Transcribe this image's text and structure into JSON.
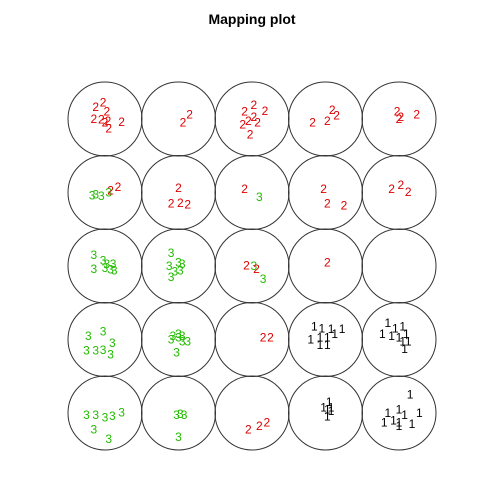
{
  "chart_data": {
    "type": "scatter",
    "title": "Mapping plot",
    "grid": {
      "rows": 5,
      "cols": 5
    },
    "class_colors": {
      "1": "#000000",
      "2": "#dd0000",
      "3": "#22bb00"
    },
    "cells": [
      {
        "row": 0,
        "col": 0,
        "points": [
          {
            "label": "2",
            "x": -0.25,
            "y": -0.32
          },
          {
            "label": "2",
            "x": -0.05,
            "y": -0.45
          },
          {
            "label": "2",
            "x": 0.05,
            "y": -0.2
          },
          {
            "label": "2",
            "x": -0.3,
            "y": 0.0
          },
          {
            "label": "2",
            "x": -0.1,
            "y": 0.02
          },
          {
            "label": "2",
            "x": 0.08,
            "y": 0.05
          },
          {
            "label": "2",
            "x": 0.0,
            "y": 0.1
          },
          {
            "label": "2",
            "x": 0.45,
            "y": 0.08
          },
          {
            "label": "2",
            "x": 0.1,
            "y": 0.25
          }
        ]
      },
      {
        "row": 0,
        "col": 1,
        "points": [
          {
            "label": "2",
            "x": 0.3,
            "y": -0.12
          },
          {
            "label": "2",
            "x": 0.12,
            "y": 0.1
          }
        ]
      },
      {
        "row": 0,
        "col": 2,
        "points": [
          {
            "label": "2",
            "x": 0.05,
            "y": -0.38
          },
          {
            "label": "2",
            "x": -0.2,
            "y": -0.2
          },
          {
            "label": "2",
            "x": 0.35,
            "y": -0.22
          },
          {
            "label": "2",
            "x": 0.05,
            "y": -0.05
          },
          {
            "label": "2",
            "x": -0.1,
            "y": 0.05
          },
          {
            "label": "2",
            "x": 0.15,
            "y": 0.1
          },
          {
            "label": "2",
            "x": -0.25,
            "y": 0.15
          },
          {
            "label": "2",
            "x": -0.05,
            "y": 0.42
          }
        ]
      },
      {
        "row": 0,
        "col": 3,
        "points": [
          {
            "label": "2",
            "x": 0.18,
            "y": -0.25
          },
          {
            "label": "2",
            "x": 0.3,
            "y": -0.1
          },
          {
            "label": "2",
            "x": -0.35,
            "y": 0.1
          },
          {
            "label": "2",
            "x": 0.05,
            "y": 0.05
          }
        ]
      },
      {
        "row": 0,
        "col": 4,
        "points": [
          {
            "label": "2",
            "x": -0.05,
            "y": -0.2
          },
          {
            "label": "2",
            "x": 0.05,
            "y": -0.05
          },
          {
            "label": "2",
            "x": 0.48,
            "y": -0.12
          },
          {
            "label": "2",
            "x": 0.0,
            "y": 0.0
          }
        ]
      },
      {
        "row": 1,
        "col": 0,
        "points": [
          {
            "label": "3",
            "x": -0.35,
            "y": 0.08
          },
          {
            "label": "3",
            "x": -0.25,
            "y": 0.05
          },
          {
            "label": "3",
            "x": -0.1,
            "y": 0.1
          },
          {
            "label": "3",
            "x": 0.1,
            "y": 0.0
          },
          {
            "label": "2",
            "x": 0.15,
            "y": -0.05
          },
          {
            "label": "2",
            "x": 0.35,
            "y": -0.15
          }
        ]
      },
      {
        "row": 1,
        "col": 1,
        "points": [
          {
            "label": "2",
            "x": 0.0,
            "y": -0.12
          },
          {
            "label": "2",
            "x": -0.2,
            "y": 0.3
          },
          {
            "label": "2",
            "x": 0.05,
            "y": 0.28
          },
          {
            "label": "2",
            "x": 0.25,
            "y": 0.32
          }
        ]
      },
      {
        "row": 1,
        "col": 2,
        "points": [
          {
            "label": "2",
            "x": -0.2,
            "y": -0.1
          },
          {
            "label": "3",
            "x": 0.2,
            "y": 0.12
          }
        ]
      },
      {
        "row": 1,
        "col": 3,
        "points": [
          {
            "label": "2",
            "x": -0.05,
            "y": -0.1
          },
          {
            "label": "2",
            "x": 0.05,
            "y": 0.3
          },
          {
            "label": "2",
            "x": 0.5,
            "y": 0.35
          }
        ]
      },
      {
        "row": 1,
        "col": 4,
        "points": [
          {
            "label": "2",
            "x": -0.2,
            "y": -0.1
          },
          {
            "label": "2",
            "x": 0.05,
            "y": -0.2
          },
          {
            "label": "2",
            "x": 0.25,
            "y": -0.02
          }
        ]
      },
      {
        "row": 2,
        "col": 0,
        "points": [
          {
            "label": "3",
            "x": -0.3,
            "y": -0.3
          },
          {
            "label": "3",
            "x": -0.05,
            "y": -0.15
          },
          {
            "label": "3",
            "x": 0.05,
            "y": -0.05
          },
          {
            "label": "3",
            "x": -0.3,
            "y": 0.08
          },
          {
            "label": "3",
            "x": 0.0,
            "y": 0.05
          },
          {
            "label": "3",
            "x": 0.15,
            "y": 0.1
          },
          {
            "label": "3",
            "x": 0.22,
            "y": -0.05
          },
          {
            "label": "3",
            "x": 0.25,
            "y": 0.12
          }
        ]
      },
      {
        "row": 2,
        "col": 1,
        "points": [
          {
            "label": "3",
            "x": -0.2,
            "y": -0.35
          },
          {
            "label": "3",
            "x": 0.0,
            "y": -0.1
          },
          {
            "label": "3",
            "x": 0.1,
            "y": -0.05
          },
          {
            "label": "3",
            "x": -0.25,
            "y": 0.0
          },
          {
            "label": "3",
            "x": -0.1,
            "y": 0.15
          },
          {
            "label": "3",
            "x": 0.05,
            "y": 0.12
          },
          {
            "label": "3",
            "x": -0.2,
            "y": 0.3
          }
        ]
      },
      {
        "row": 2,
        "col": 2,
        "points": [
          {
            "label": "2",
            "x": -0.15,
            "y": -0.02
          },
          {
            "label": "3",
            "x": 0.05,
            "y": 0.0
          },
          {
            "label": "2",
            "x": 0.12,
            "y": 0.08
          },
          {
            "label": "3",
            "x": 0.3,
            "y": 0.35
          }
        ]
      },
      {
        "row": 2,
        "col": 3,
        "points": [
          {
            "label": "2",
            "x": 0.05,
            "y": -0.1
          }
        ]
      },
      {
        "row": 2,
        "col": 4,
        "points": []
      },
      {
        "row": 3,
        "col": 0,
        "points": [
          {
            "label": "3",
            "x": -0.45,
            "y": -0.1
          },
          {
            "label": "3",
            "x": -0.05,
            "y": -0.22
          },
          {
            "label": "3",
            "x": 0.2,
            "y": 0.1
          },
          {
            "label": "3",
            "x": -0.5,
            "y": 0.3
          },
          {
            "label": "3",
            "x": -0.25,
            "y": 0.3
          },
          {
            "label": "3",
            "x": -0.05,
            "y": 0.28
          },
          {
            "label": "3",
            "x": 0.15,
            "y": 0.4
          }
        ]
      },
      {
        "row": 3,
        "col": 1,
        "points": [
          {
            "label": "3",
            "x": -0.15,
            "y": -0.1
          },
          {
            "label": "3",
            "x": 0.0,
            "y": -0.15
          },
          {
            "label": "3",
            "x": 0.1,
            "y": -0.1
          },
          {
            "label": "3",
            "x": -0.2,
            "y": 0.0
          },
          {
            "label": "3",
            "x": 0.0,
            "y": -0.05
          },
          {
            "label": "3",
            "x": 0.1,
            "y": 0.05
          },
          {
            "label": "3",
            "x": 0.25,
            "y": 0.05
          },
          {
            "label": "3",
            "x": -0.05,
            "y": 0.35
          }
        ]
      },
      {
        "row": 3,
        "col": 2,
        "points": [
          {
            "label": "2",
            "x": 0.3,
            "y": -0.05
          },
          {
            "label": "2",
            "x": 0.5,
            "y": -0.05
          }
        ]
      },
      {
        "row": 3,
        "col": 3,
        "points": [
          {
            "label": "1",
            "x": -0.3,
            "y": -0.35
          },
          {
            "label": "1",
            "x": -0.1,
            "y": -0.3
          },
          {
            "label": "1",
            "x": 0.15,
            "y": -0.28
          },
          {
            "label": "1",
            "x": 0.45,
            "y": -0.28
          },
          {
            "label": "1",
            "x": -0.4,
            "y": 0.0
          },
          {
            "label": "1",
            "x": -0.15,
            "y": -0.05
          },
          {
            "label": "1",
            "x": 0.05,
            "y": -0.05
          },
          {
            "label": "1",
            "x": 0.25,
            "y": -0.15
          },
          {
            "label": "1",
            "x": -0.15,
            "y": 0.15
          },
          {
            "label": "1",
            "x": 0.05,
            "y": 0.15
          }
        ]
      },
      {
        "row": 3,
        "col": 4,
        "points": [
          {
            "label": "1",
            "x": -0.3,
            "y": -0.45
          },
          {
            "label": "1",
            "x": -0.1,
            "y": -0.3
          },
          {
            "label": "1",
            "x": 0.1,
            "y": -0.35
          },
          {
            "label": "1",
            "x": -0.45,
            "y": -0.15
          },
          {
            "label": "1",
            "x": -0.2,
            "y": -0.1
          },
          {
            "label": "1",
            "x": 0.0,
            "y": -0.05
          },
          {
            "label": "1",
            "x": 0.2,
            "y": -0.15
          },
          {
            "label": "1",
            "x": 0.1,
            "y": 0.05
          },
          {
            "label": "1",
            "x": 0.25,
            "y": 0.05
          },
          {
            "label": "1",
            "x": 0.15,
            "y": 0.25
          }
        ]
      },
      {
        "row": 4,
        "col": 0,
        "points": [
          {
            "label": "3",
            "x": -0.5,
            "y": 0.05
          },
          {
            "label": "3",
            "x": -0.25,
            "y": 0.05
          },
          {
            "label": "3",
            "x": 0.0,
            "y": 0.12
          },
          {
            "label": "3",
            "x": 0.2,
            "y": 0.08
          },
          {
            "label": "3",
            "x": 0.45,
            "y": -0.02
          },
          {
            "label": "3",
            "x": -0.3,
            "y": 0.45
          },
          {
            "label": "3",
            "x": 0.1,
            "y": 0.7
          }
        ]
      },
      {
        "row": 4,
        "col": 1,
        "points": [
          {
            "label": "3",
            "x": -0.05,
            "y": 0.05
          },
          {
            "label": "3",
            "x": 0.05,
            "y": 0.03
          },
          {
            "label": "3",
            "x": 0.15,
            "y": 0.05
          },
          {
            "label": "3",
            "x": 0.0,
            "y": 0.65
          }
        ]
      },
      {
        "row": 4,
        "col": 2,
        "points": [
          {
            "label": "2",
            "x": -0.1,
            "y": 0.45
          },
          {
            "label": "2",
            "x": 0.2,
            "y": 0.35
          },
          {
            "label": "2",
            "x": 0.4,
            "y": 0.25
          }
        ]
      },
      {
        "row": 4,
        "col": 3,
        "points": [
          {
            "label": "1",
            "x": 0.1,
            "y": -0.3
          },
          {
            "label": "1",
            "x": -0.05,
            "y": -0.15
          },
          {
            "label": "1",
            "x": 0.05,
            "y": -0.1
          },
          {
            "label": "1",
            "x": 0.15,
            "y": -0.15
          },
          {
            "label": "1",
            "x": 0.05,
            "y": 0.1
          },
          {
            "label": "1",
            "x": 0.15,
            "y": -0.05
          }
        ]
      },
      {
        "row": 4,
        "col": 4,
        "points": [
          {
            "label": "1",
            "x": 0.3,
            "y": -0.5
          },
          {
            "label": "1",
            "x": 0.0,
            "y": -0.1
          },
          {
            "label": "1",
            "x": -0.3,
            "y": 0.0
          },
          {
            "label": "1",
            "x": 0.15,
            "y": 0.05
          },
          {
            "label": "1",
            "x": -0.4,
            "y": 0.25
          },
          {
            "label": "1",
            "x": -0.15,
            "y": 0.2
          },
          {
            "label": "1",
            "x": 0.0,
            "y": 0.25
          },
          {
            "label": "1",
            "x": 0.55,
            "y": 0.0
          },
          {
            "label": "1",
            "x": 0.35,
            "y": 0.3
          },
          {
            "label": "1",
            "x": 0.0,
            "y": 0.35
          }
        ]
      }
    ]
  }
}
